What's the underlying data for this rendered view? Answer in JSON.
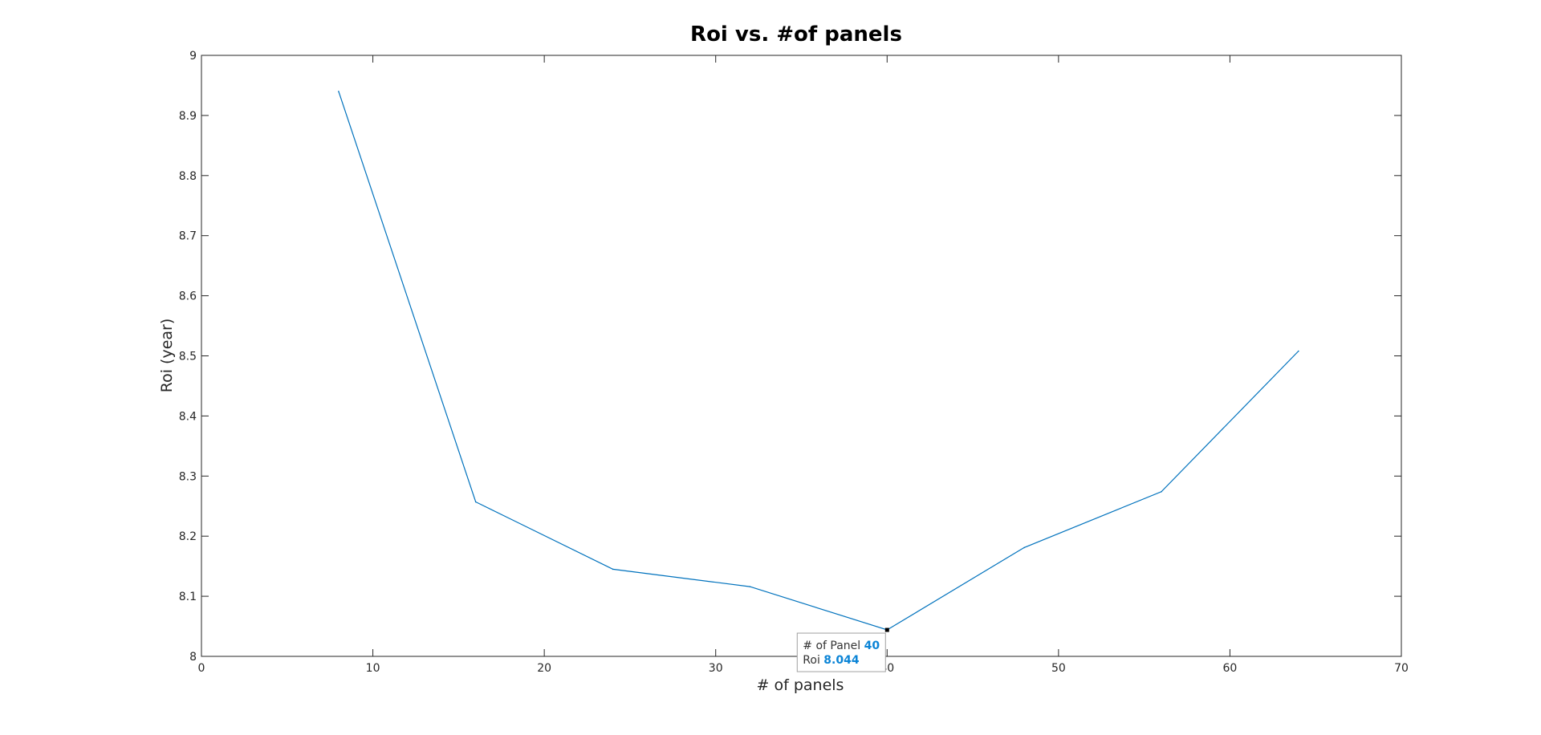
{
  "chart_data": {
    "type": "line",
    "title": "Roi vs. #of panels",
    "xlabel": "# of panels",
    "ylabel": "Roi (year)",
    "xlim": [
      0,
      70
    ],
    "ylim": [
      8,
      9
    ],
    "x_ticks": [
      0,
      10,
      20,
      30,
      40,
      50,
      60,
      70
    ],
    "y_ticks": [
      8,
      8.1,
      8.2,
      8.3,
      8.4,
      8.5,
      8.6,
      8.7,
      8.8,
      8.9,
      9
    ],
    "x_tick_labels": [
      "0",
      "10",
      "20",
      "30",
      "40",
      "50",
      "60",
      "70"
    ],
    "y_tick_labels": [
      "8",
      "8.1",
      "8.2",
      "8.3",
      "8.4",
      "8.5",
      "8.6",
      "8.7",
      "8.8",
      "8.9",
      "9"
    ],
    "grid": false,
    "box": true,
    "series": [
      {
        "color": "#0072bd",
        "x": [
          8,
          16,
          24,
          32,
          40,
          48,
          56,
          64
        ],
        "y": [
          8.94,
          8.257,
          8.145,
          8.116,
          8.044,
          8.181,
          8.274,
          8.508
        ]
      }
    ],
    "datatip": {
      "x": 40,
      "y": 8.044,
      "x_label": "# of Panel",
      "x_value": "40",
      "y_label": "Roi",
      "y_value": "8.044"
    }
  }
}
